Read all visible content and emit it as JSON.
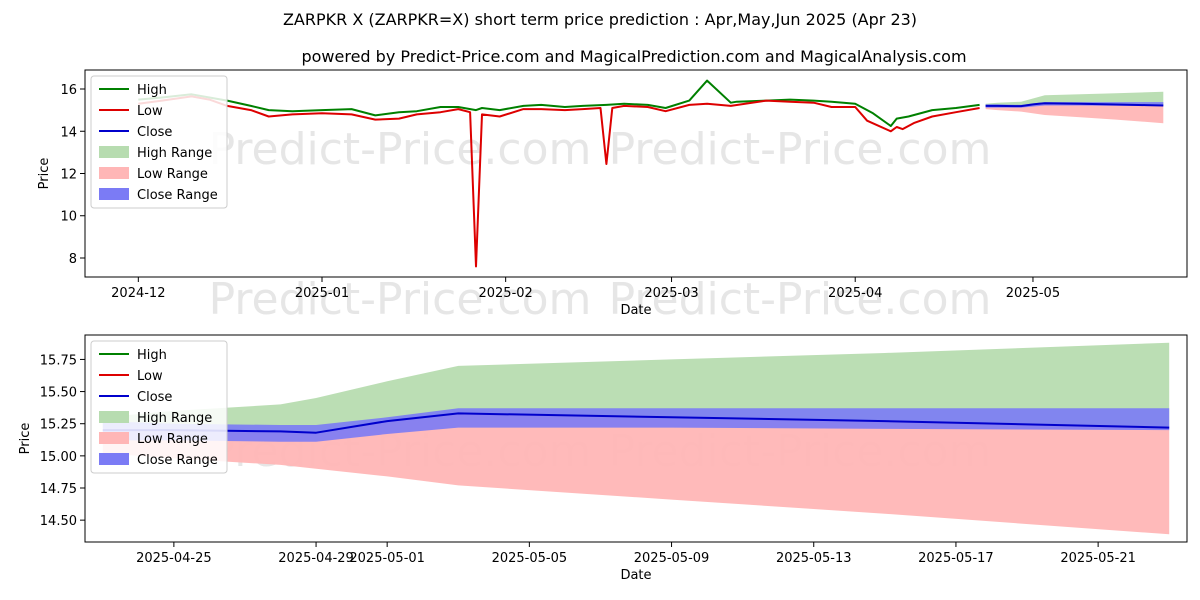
{
  "title_line1": "ZARPKR X (ZARPKR=X) short term price prediction : Apr,May,Jun 2025 (Apr 23)",
  "title_line2": "powered by Predict-Price.com and MagicalPrediction.com and MagicalAnalysis.com",
  "watermark": "Predict-Price.com",
  "colors": {
    "high": "#008000",
    "low": "#dd0000",
    "close": "#0000cc",
    "high_range": "#b7dcb0",
    "low_range": "#ffb6b6",
    "close_range": "#7b7bf5"
  },
  "chart_data": [
    {
      "type": "line",
      "xlabel": "Date",
      "ylabel": "Price",
      "xlim": [
        "2024-11-22",
        "2025-05-27"
      ],
      "ylim": [
        7.1,
        16.9
      ],
      "x_ticks": [
        "2024-12-01",
        "2025-01-01",
        "2025-02-01",
        "2025-03-01",
        "2025-04-01",
        "2025-05-01"
      ],
      "x_tick_labels": [
        "2024-12",
        "2025-01",
        "2025-02",
        "2025-03",
        "2025-04",
        "2025-05"
      ],
      "y_ticks": [
        8,
        10,
        12,
        14,
        16
      ],
      "y_tick_labels": [
        "8",
        "10",
        "12",
        "14",
        "16"
      ],
      "legend": [
        "High",
        "Low",
        "Close",
        "High Range",
        "Low Range",
        "Close Range"
      ],
      "legend_position": "top-left",
      "series": [
        {
          "name": "High",
          "x": [
            "2024-12-01",
            "2024-12-05",
            "2024-12-10",
            "2024-12-13",
            "2024-12-16",
            "2024-12-20",
            "2024-12-23",
            "2024-12-27",
            "2025-01-01",
            "2025-01-06",
            "2025-01-10",
            "2025-01-14",
            "2025-01-17",
            "2025-01-21",
            "2025-01-24",
            "2025-01-27",
            "2025-01-28",
            "2025-01-31",
            "2025-02-04",
            "2025-02-07",
            "2025-02-11",
            "2025-02-14",
            "2025-02-18",
            "2025-02-21",
            "2025-02-25",
            "2025-02-28",
            "2025-03-04",
            "2025-03-07",
            "2025-03-11",
            "2025-03-12",
            "2025-03-17",
            "2025-03-21",
            "2025-03-25",
            "2025-03-28",
            "2025-04-01",
            "2025-04-04",
            "2025-04-07",
            "2025-04-08",
            "2025-04-10",
            "2025-04-14",
            "2025-04-18",
            "2025-04-22"
          ],
          "y": [
            15.5,
            15.6,
            15.75,
            15.6,
            15.45,
            15.2,
            15.0,
            14.95,
            15.0,
            15.05,
            14.75,
            14.9,
            14.95,
            15.15,
            15.15,
            15.0,
            15.1,
            15.0,
            15.2,
            15.25,
            15.15,
            15.2,
            15.25,
            15.3,
            15.25,
            15.1,
            15.45,
            16.4,
            15.35,
            15.4,
            15.45,
            15.5,
            15.45,
            15.4,
            15.3,
            14.85,
            14.25,
            14.6,
            14.7,
            15.0,
            15.1,
            15.25
          ]
        },
        {
          "name": "Low",
          "x": [
            "2024-12-01",
            "2024-12-05",
            "2024-12-10",
            "2024-12-13",
            "2024-12-16",
            "2024-12-20",
            "2024-12-23",
            "2024-12-27",
            "2025-01-01",
            "2025-01-06",
            "2025-01-10",
            "2025-01-14",
            "2025-01-17",
            "2025-01-21",
            "2025-01-24",
            "2025-01-26",
            "2025-01-27",
            "2025-01-28",
            "2025-01-31",
            "2025-02-04",
            "2025-02-07",
            "2025-02-11",
            "2025-02-14",
            "2025-02-17",
            "2025-02-18",
            "2025-02-19",
            "2025-02-21",
            "2025-02-25",
            "2025-02-28",
            "2025-03-04",
            "2025-03-07",
            "2025-03-11",
            "2025-03-17",
            "2025-03-21",
            "2025-03-25",
            "2025-03-28",
            "2025-04-01",
            "2025-04-03",
            "2025-04-07",
            "2025-04-08",
            "2025-04-09",
            "2025-04-11",
            "2025-04-14",
            "2025-04-18",
            "2025-04-22"
          ],
          "y": [
            15.3,
            15.45,
            15.65,
            15.5,
            15.2,
            15.0,
            14.7,
            14.8,
            14.85,
            14.8,
            14.55,
            14.6,
            14.8,
            14.9,
            15.05,
            14.9,
            7.6,
            14.8,
            14.7,
            15.05,
            15.05,
            15.0,
            15.05,
            15.1,
            12.45,
            15.1,
            15.2,
            15.15,
            14.95,
            15.25,
            15.3,
            15.2,
            15.45,
            15.4,
            15.35,
            15.15,
            15.15,
            14.5,
            14.0,
            14.2,
            14.1,
            14.4,
            14.7,
            14.9,
            15.1
          ]
        },
        {
          "name": "Close",
          "x": [
            "2025-04-23",
            "2025-04-24",
            "2025-04-25",
            "2025-04-28",
            "2025-04-29",
            "2025-05-01",
            "2025-05-02",
            "2025-05-03",
            "2025-05-09",
            "2025-05-14",
            "2025-05-20",
            "2025-05-23"
          ],
          "y": [
            15.2,
            15.2,
            15.2,
            15.19,
            15.19,
            15.27,
            15.3,
            15.33,
            15.3,
            15.27,
            15.24,
            15.22
          ]
        },
        {
          "name": "High Range",
          "x": [
            "2025-04-23",
            "2025-04-25",
            "2025-04-29",
            "2025-05-03",
            "2025-05-09",
            "2025-05-15",
            "2025-05-23"
          ],
          "upper": [
            15.3,
            15.35,
            15.4,
            15.7,
            15.75,
            15.8,
            15.87
          ],
          "lower": [
            15.2,
            15.2,
            15.19,
            15.33,
            15.3,
            15.26,
            15.22
          ]
        },
        {
          "name": "Low Range",
          "x": [
            "2025-04-23",
            "2025-04-25",
            "2025-04-29",
            "2025-05-03",
            "2025-05-09",
            "2025-05-15",
            "2025-05-23"
          ],
          "upper": [
            15.2,
            15.2,
            15.19,
            15.33,
            15.3,
            15.26,
            15.22
          ],
          "lower": [
            15.05,
            15.0,
            14.93,
            14.77,
            14.66,
            14.55,
            14.38
          ]
        },
        {
          "name": "Close Range",
          "x": [
            "2025-04-23",
            "2025-04-25",
            "2025-04-29",
            "2025-05-03",
            "2025-05-09",
            "2025-05-15",
            "2025-05-23"
          ],
          "upper": [
            15.27,
            15.27,
            15.25,
            15.38,
            15.38,
            15.38,
            15.38
          ],
          "lower": [
            15.12,
            15.12,
            15.12,
            15.22,
            15.22,
            15.21,
            15.2
          ]
        }
      ]
    },
    {
      "type": "line",
      "xlabel": "Date",
      "ylabel": "Price",
      "xlim": [
        "2025-04-22 12:00",
        "2025-05-23 12:00"
      ],
      "ylim": [
        14.33,
        15.94
      ],
      "x_ticks": [
        "2025-04-25",
        "2025-04-29",
        "2025-05-01",
        "2025-05-05",
        "2025-05-09",
        "2025-05-13",
        "2025-05-17",
        "2025-05-21"
      ],
      "x_tick_labels": [
        "2025-04-25",
        "2025-04-29",
        "2025-05-01",
        "2025-05-05",
        "2025-05-09",
        "2025-05-13",
        "2025-05-17",
        "2025-05-21"
      ],
      "y_ticks": [
        14.5,
        14.75,
        15.0,
        15.25,
        15.5,
        15.75
      ],
      "y_tick_labels": [
        "14.50",
        "14.75",
        "15.00",
        "15.25",
        "15.50",
        "15.75"
      ],
      "legend": [
        "High",
        "Low",
        "Close",
        "High Range",
        "Low Range",
        "Close Range"
      ],
      "legend_position": "top-left",
      "series": [
        {
          "name": "Close",
          "x": [
            "2025-04-23",
            "2025-04-25",
            "2025-04-28",
            "2025-04-29",
            "2025-05-01",
            "2025-05-03",
            "2025-05-09",
            "2025-05-15",
            "2025-05-23"
          ],
          "y": [
            15.2,
            15.2,
            15.19,
            15.18,
            15.27,
            15.33,
            15.3,
            15.27,
            15.22
          ]
        },
        {
          "name": "High Range",
          "x": [
            "2025-04-23",
            "2025-04-25",
            "2025-04-28",
            "2025-04-29",
            "2025-05-01",
            "2025-05-03",
            "2025-05-09",
            "2025-05-15",
            "2025-05-23"
          ],
          "upper": [
            15.3,
            15.35,
            15.4,
            15.45,
            15.58,
            15.7,
            15.75,
            15.8,
            15.88
          ],
          "lower": [
            15.22,
            15.2,
            15.19,
            15.18,
            15.27,
            15.33,
            15.3,
            15.27,
            15.22
          ]
        },
        {
          "name": "Low Range",
          "x": [
            "2025-04-23",
            "2025-04-25",
            "2025-04-28",
            "2025-04-29",
            "2025-05-01",
            "2025-05-03",
            "2025-05-09",
            "2025-05-15",
            "2025-05-23"
          ],
          "upper": [
            15.2,
            15.2,
            15.19,
            15.18,
            15.27,
            15.33,
            15.3,
            15.27,
            15.22
          ],
          "lower": [
            15.02,
            14.98,
            14.93,
            14.9,
            14.84,
            14.77,
            14.66,
            14.55,
            14.39
          ]
        },
        {
          "name": "Close Range",
          "x": [
            "2025-04-23",
            "2025-04-25",
            "2025-04-28",
            "2025-04-29",
            "2025-05-01",
            "2025-05-03",
            "2025-05-09",
            "2025-05-15",
            "2025-05-23"
          ],
          "upper": [
            15.27,
            15.25,
            15.24,
            15.24,
            15.3,
            15.37,
            15.37,
            15.37,
            15.37
          ],
          "lower": [
            15.12,
            15.12,
            15.11,
            15.11,
            15.17,
            15.22,
            15.22,
            15.21,
            15.2
          ]
        }
      ]
    }
  ]
}
